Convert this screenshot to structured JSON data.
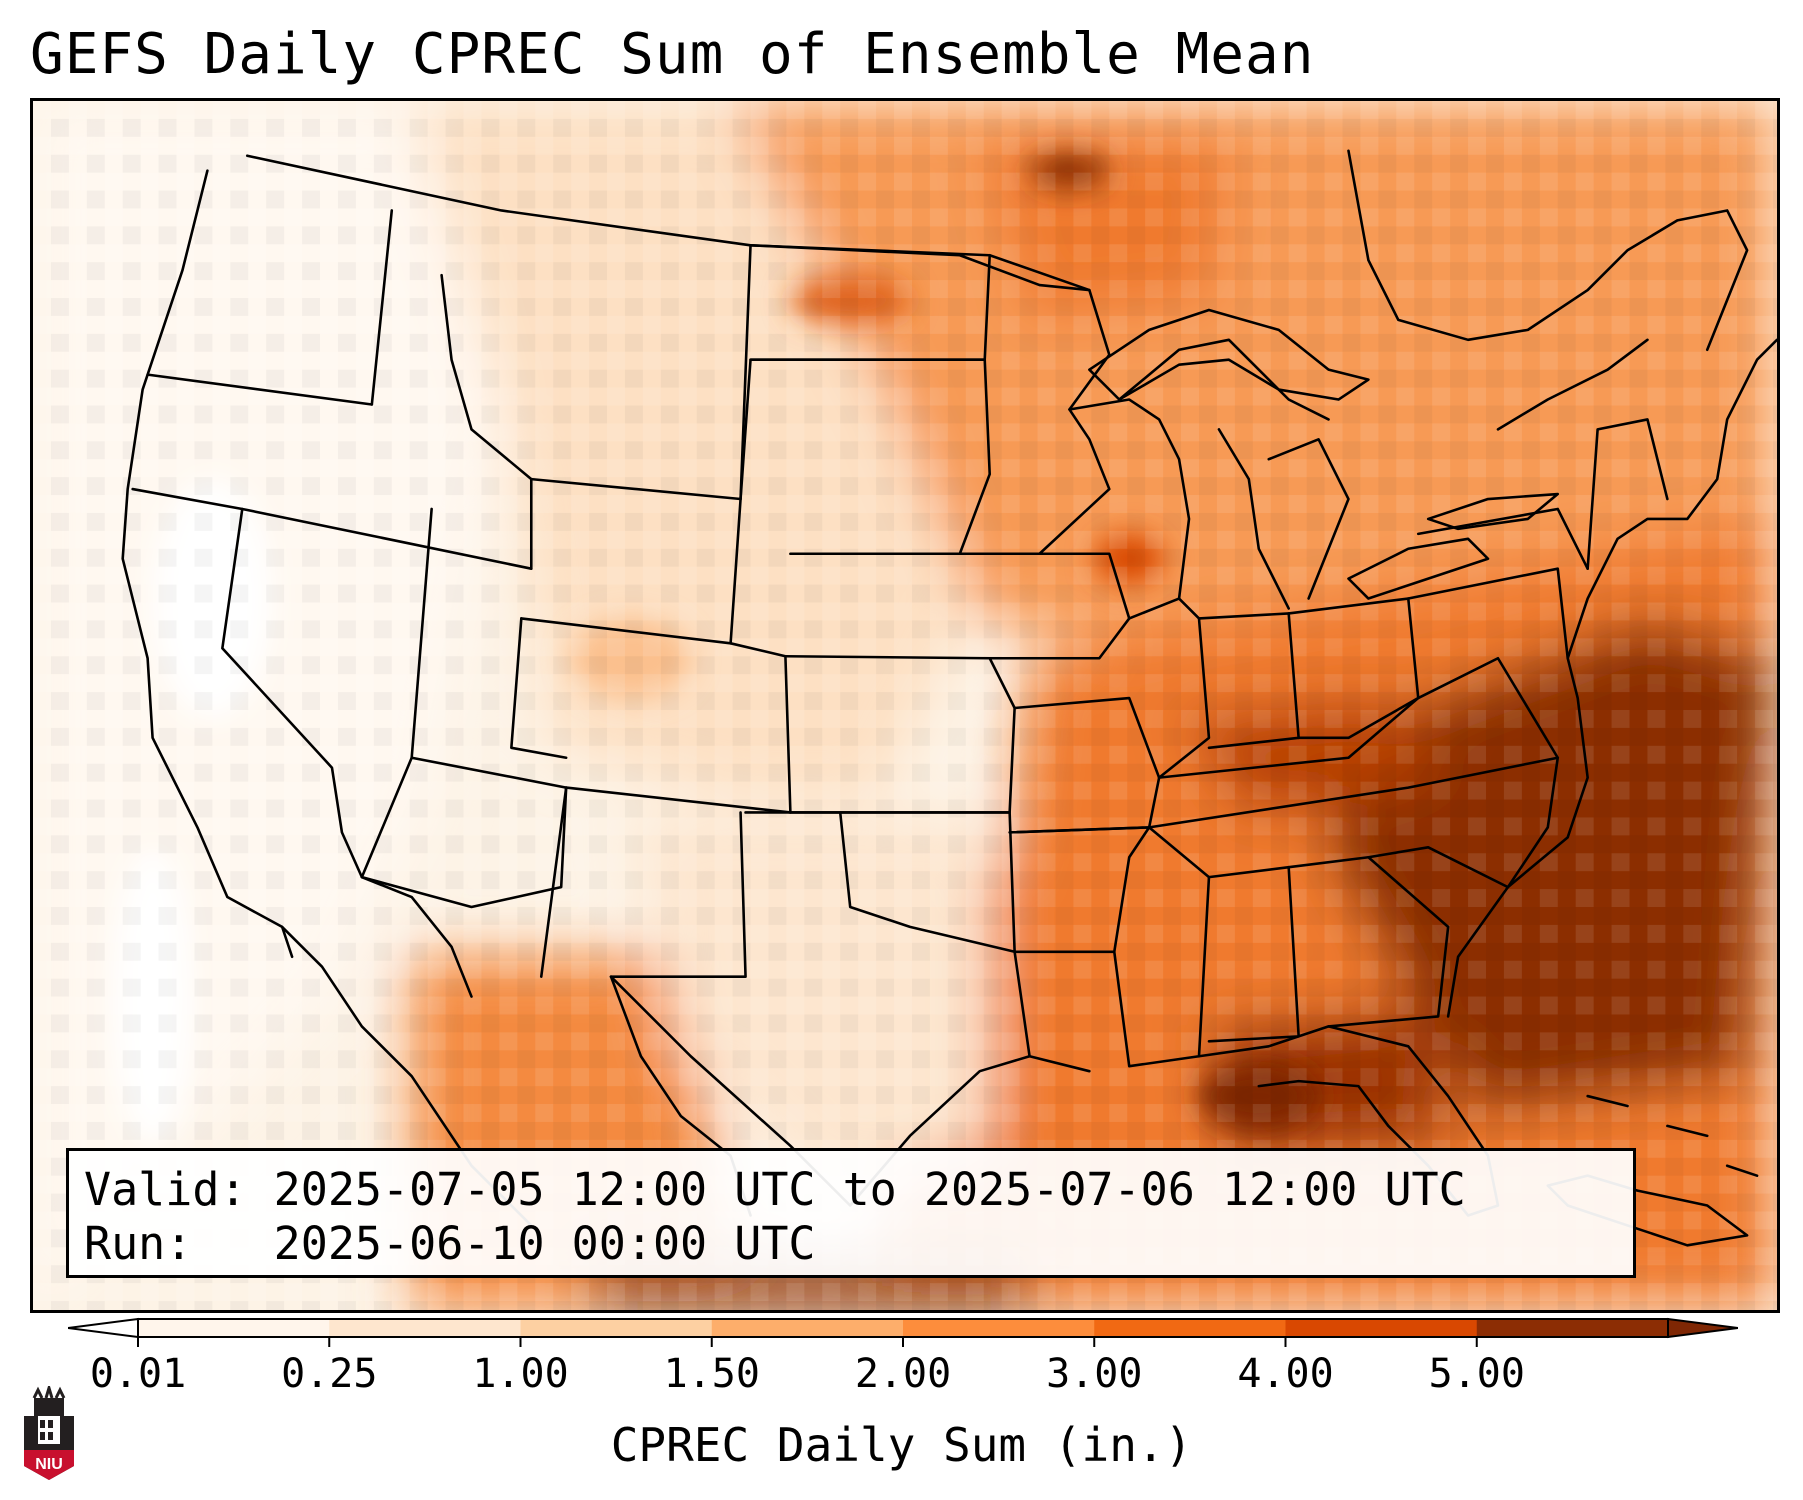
{
  "title": "GEFS Daily CPREC Sum of Ensemble Mean",
  "info": {
    "valid_label": "Valid:",
    "valid_value": "2025-07-05 12:00 UTC to 2025-07-06 12:00 UTC",
    "run_label": "Run:",
    "run_value": "2025-06-10 00:00 UTC"
  },
  "colorbar": {
    "label": "CPREC Daily Sum (in.)",
    "ticks": [
      "0.01",
      "0.25",
      "1.00",
      "1.50",
      "2.00",
      "3.00",
      "4.00",
      "5.00"
    ],
    "colors": [
      "#fff5eb",
      "#fee6ce",
      "#fdd0a2",
      "#fdae6b",
      "#fd8d3c",
      "#f16913",
      "#d94801",
      "#8c2d04"
    ],
    "under_color": "#ffffff",
    "over_color": "#7f2704"
  },
  "logo": {
    "text": "NIU",
    "colors": {
      "red": "#c8102e",
      "dark": "#231f20"
    }
  }
}
